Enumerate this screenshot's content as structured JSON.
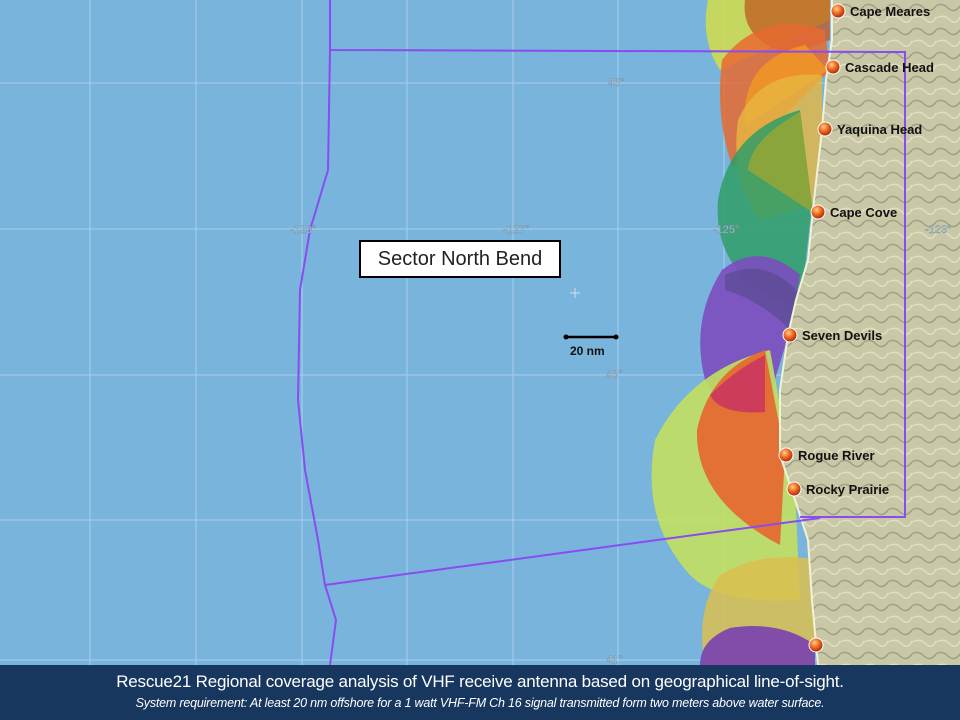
{
  "map": {
    "sector_label": "Sector North Bend",
    "scale_bar_label": "20 nm",
    "longitude_labels": [
      "-129°",
      "-127°",
      "-125°",
      "-123°"
    ],
    "latitude_labels": [
      "45°",
      "43°",
      "41°"
    ],
    "stations": [
      {
        "name": "Cape Meares"
      },
      {
        "name": "Cascade Head"
      },
      {
        "name": "Yaquina Head"
      },
      {
        "name": "Cape Cove"
      },
      {
        "name": "Seven Devils"
      },
      {
        "name": "Rogue River"
      },
      {
        "name": "Rocky Prairie"
      },
      {
        "name": ""
      }
    ],
    "colors": {
      "ocean": "#78b4dc",
      "land": "#c9c8a6",
      "sector_boundary": "#8a4cf0",
      "station_marker": "#e8501a"
    }
  },
  "caption": {
    "title": "Rescue21 Regional coverage analysis of VHF receive antenna based on geographical line-of-sight.",
    "subtitle": "System requirement: At least 20 nm offshore for a 1 watt VHF-FM Ch 16 signal transmitted form two meters above water surface."
  }
}
